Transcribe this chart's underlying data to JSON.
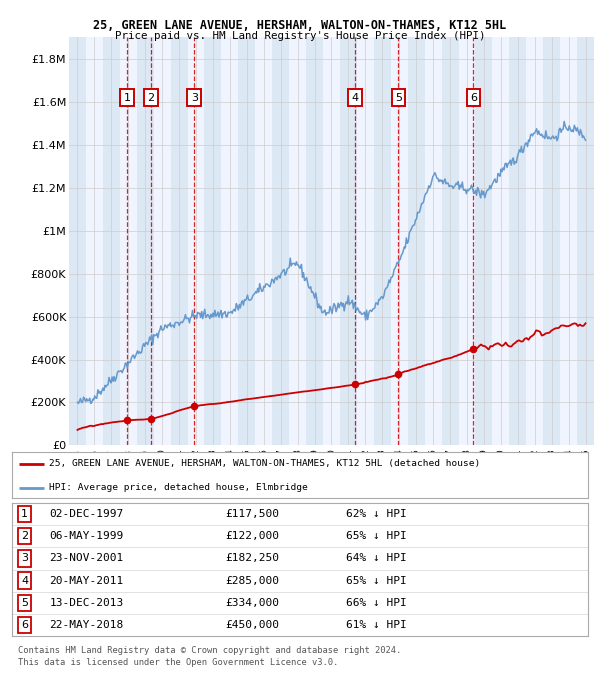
{
  "title1": "25, GREEN LANE AVENUE, HERSHAM, WALTON-ON-THAMES, KT12 5HL",
  "title2": "Price paid vs. HM Land Registry's House Price Index (HPI)",
  "transactions": [
    {
      "num": 1,
      "date": "02-DEC-1997",
      "year": 1997.92,
      "price": 117500,
      "pct": "62%"
    },
    {
      "num": 2,
      "date": "06-MAY-1999",
      "year": 1999.35,
      "price": 122000,
      "pct": "65%"
    },
    {
      "num": 3,
      "date": "23-NOV-2001",
      "year": 2001.9,
      "price": 182250,
      "pct": "64%"
    },
    {
      "num": 4,
      "date": "20-MAY-2011",
      "year": 2011.38,
      "price": 285000,
      "pct": "65%"
    },
    {
      "num": 5,
      "date": "13-DEC-2013",
      "year": 2013.95,
      "price": 334000,
      "pct": "66%"
    },
    {
      "num": 6,
      "date": "22-MAY-2018",
      "year": 2018.38,
      "price": 450000,
      "pct": "61%"
    }
  ],
  "legend_line1": "25, GREEN LANE AVENUE, HERSHAM, WALTON-ON-THAMES, KT12 5HL (detached house)",
  "legend_line2": "HPI: Average price, detached house, Elmbridge",
  "footer1": "Contains HM Land Registry data © Crown copyright and database right 2024.",
  "footer2": "This data is licensed under the Open Government Licence v3.0.",
  "red_color": "#cc0000",
  "blue_color": "#6699cc",
  "band_color": "#dde8f5",
  "background_color": "#f0f4ff",
  "grid_color": "#cccccc",
  "xlim": [
    1994.5,
    2025.5
  ],
  "ylim": [
    0,
    1900000
  ],
  "yticks": [
    0,
    200000,
    400000,
    600000,
    800000,
    1000000,
    1200000,
    1400000,
    1600000,
    1800000
  ],
  "ytick_labels": [
    "£0",
    "£200K",
    "£400K",
    "£600K",
    "£800K",
    "£1M",
    "£1.2M",
    "£1.4M",
    "£1.6M",
    "£1.8M"
  ]
}
